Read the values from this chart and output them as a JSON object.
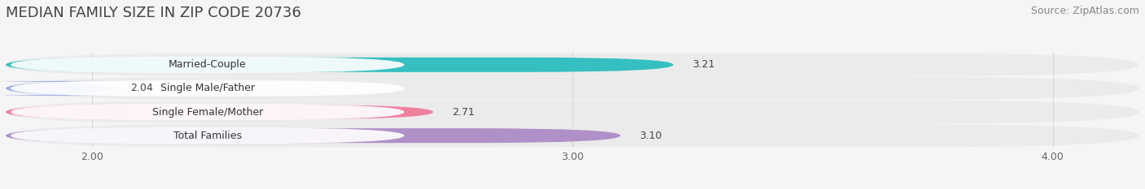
{
  "title": "MEDIAN FAMILY SIZE IN ZIP CODE 20736",
  "source": "Source: ZipAtlas.com",
  "categories": [
    "Married-Couple",
    "Single Male/Father",
    "Single Female/Mother",
    "Total Families"
  ],
  "values": [
    3.21,
    2.04,
    2.71,
    3.1
  ],
  "bar_colors": [
    "#35bfc0",
    "#a0b0e8",
    "#f080a0",
    "#b090c8"
  ],
  "row_bg_color": "#ebebeb",
  "background_color": "#f5f5f5",
  "label_bg_color": "#ffffff",
  "xlim_min": 1.82,
  "xlim_max": 4.18,
  "x_ticks": [
    2.0,
    3.0,
    4.0
  ],
  "bar_height": 0.62,
  "title_fontsize": 13,
  "source_fontsize": 9,
  "label_fontsize": 9,
  "value_fontsize": 9,
  "tick_fontsize": 9,
  "grid_color": "#d8d8d8"
}
